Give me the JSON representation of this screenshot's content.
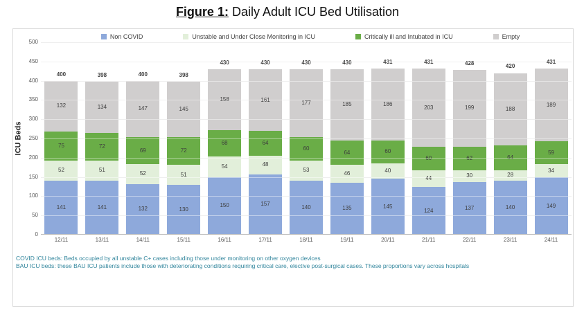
{
  "title": {
    "figure_label": "Figure 1:",
    "title_text": " Daily Adult ICU Bed Utilisation"
  },
  "chart_data": {
    "type": "bar",
    "stacked": true,
    "title": "Daily Adult ICU Bed Utilisation",
    "ylabel": "ICU Beds",
    "xlabel": "",
    "ylim": [
      0,
      500
    ],
    "ytick_step": 50,
    "grid": true,
    "legend_position": "top",
    "categories": [
      "12/11",
      "13/11",
      "14/11",
      "15/11",
      "16/11",
      "17/11",
      "18/11",
      "19/11",
      "20/11",
      "21/11",
      "22/11",
      "23/11",
      "24/11"
    ],
    "series": [
      {
        "name": "Non COVID",
        "color": "#8EA9DB",
        "values": [
          141,
          141,
          132,
          130,
          150,
          157,
          140,
          135,
          145,
          124,
          137,
          140,
          149
        ]
      },
      {
        "name": "Unstable and Under Close Monitoring in ICU",
        "color": "#E2EFDA",
        "values": [
          52,
          51,
          52,
          51,
          54,
          48,
          53,
          46,
          40,
          44,
          30,
          28,
          34
        ]
      },
      {
        "name": "Critically ill and Intubated in ICU",
        "color": "#6AAD47",
        "values": [
          75,
          72,
          69,
          72,
          68,
          64,
          60,
          64,
          60,
          60,
          62,
          64,
          59
        ]
      },
      {
        "name": "Empty",
        "color": "#D0CECE",
        "values": [
          132,
          134,
          147,
          145,
          158,
          161,
          177,
          185,
          186,
          203,
          199,
          188,
          189
        ]
      }
    ],
    "totals": [
      400,
      398,
      400,
      398,
      430,
      430,
      430,
      430,
      431,
      431,
      428,
      420,
      431
    ]
  },
  "footnotes": [
    "COVID ICU beds: Beds occupied by all unstable C+ cases including those under monitoring on other oxygen devices",
    "BAU ICU beds: these BAU ICU patients include those with deteriorating conditions requiring critical care, elective post-surgical cases. These proportions vary across hospitals"
  ]
}
